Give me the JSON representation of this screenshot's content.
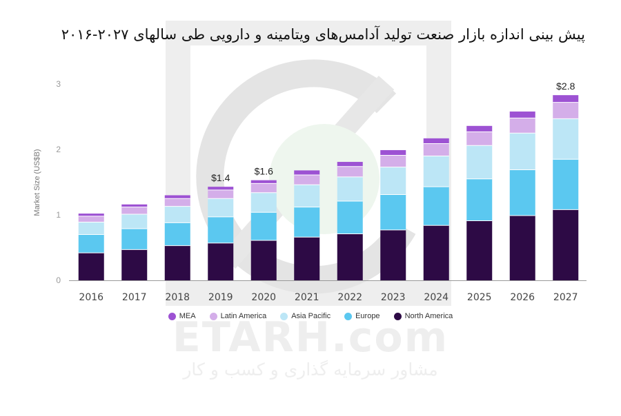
{
  "title": "پیش بینی اندازه بازار صنعت تولید آدامس‌های ویتامینه و دارویی طی سالهای ۲۰۲۷-۲۰۱۶",
  "watermark": {
    "brand": "ETARH.com",
    "subtitle": "مشاور سرمایه گذاری و کسب و کار"
  },
  "chart_data": {
    "type": "bar",
    "stacked": true,
    "categories": [
      "2016",
      "2017",
      "2018",
      "2019",
      "2020",
      "2021",
      "2022",
      "2023",
      "2024",
      "2025",
      "2026",
      "2027"
    ],
    "series": [
      {
        "name": "North America",
        "color": "#2d0a45",
        "values": [
          0.42,
          0.47,
          0.53,
          0.57,
          0.61,
          0.66,
          0.71,
          0.77,
          0.84,
          0.91,
          0.99,
          1.08
        ]
      },
      {
        "name": "Europe",
        "color": "#5bc8f0",
        "values": [
          0.28,
          0.32,
          0.35,
          0.4,
          0.43,
          0.46,
          0.5,
          0.54,
          0.59,
          0.64,
          0.7,
          0.77
        ]
      },
      {
        "name": "Asia Pacific",
        "color": "#bce6f6",
        "values": [
          0.19,
          0.22,
          0.25,
          0.28,
          0.3,
          0.34,
          0.37,
          0.42,
          0.47,
          0.51,
          0.56,
          0.62
        ]
      },
      {
        "name": "Latin America",
        "color": "#d4aee9",
        "values": [
          0.09,
          0.11,
          0.12,
          0.13,
          0.14,
          0.15,
          0.16,
          0.18,
          0.19,
          0.21,
          0.23,
          0.25
        ]
      },
      {
        "name": "MEA",
        "color": "#9d52d3",
        "values": [
          0.04,
          0.04,
          0.05,
          0.05,
          0.05,
          0.07,
          0.07,
          0.08,
          0.08,
          0.09,
          0.1,
          0.11
        ]
      }
    ],
    "legend_order": [
      "MEA",
      "Latin America",
      "Asia Pacific",
      "Europe",
      "North America"
    ],
    "data_labels": [
      {
        "category": "2019",
        "text": "$1.4"
      },
      {
        "category": "2020",
        "text": "$1.6"
      },
      {
        "category": "2027",
        "text": "$2.8"
      }
    ],
    "ylabel": "Market Size (US$B)",
    "xlabel": "",
    "ylim": [
      0,
      3
    ],
    "yticks": [
      0,
      1,
      2,
      3
    ],
    "grid": false,
    "legend_position": "bottom"
  }
}
